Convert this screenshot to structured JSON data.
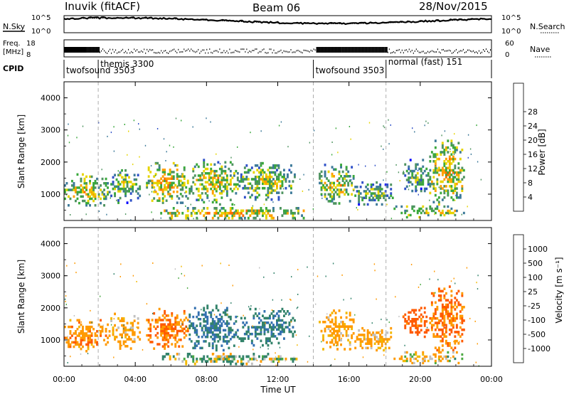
{
  "header": {
    "station": "Inuvik (fitACF)",
    "beam": "Beam 06",
    "date": "28/Nov/2015"
  },
  "labels": {
    "nsky": "N.Sky",
    "nsearch": "N.Search",
    "freq_line1": "Freq.",
    "freq_line2": "[MHz]",
    "nave": "Nave",
    "cpid": "CPID",
    "nsky_ticks": [
      "10^5",
      "10^0"
    ],
    "freq_ticks": [
      "18",
      "8"
    ],
    "nave_ticks": [
      "60",
      "0"
    ]
  },
  "cpid_segments": [
    {
      "start_hour": 0.0,
      "label": "twofsound 3503"
    },
    {
      "start_hour": 1.92,
      "label": "themis 3300"
    },
    {
      "start_hour": 14.0,
      "label": "twofsound 3503"
    },
    {
      "start_hour": 18.08,
      "label": "normal (fast) 151"
    }
  ],
  "axes": {
    "xlabel": "Time UT",
    "ylabel": "Slant Range [km]",
    "x_ticks": [
      "00:00",
      "04:00",
      "08:00",
      "12:00",
      "16:00",
      "20:00",
      "00:00"
    ],
    "y_ticks": [
      "1000",
      "2000",
      "3000",
      "4000"
    ]
  },
  "colorbars": {
    "power": {
      "label": "Power [dB]",
      "ticks": [
        "4",
        "8",
        "12",
        "16",
        "20",
        "24",
        "28"
      ],
      "colors": [
        "#0000ff",
        "#2e50c8",
        "#3d7a99",
        "#4f9460",
        "#3aa83c",
        "#e6d400",
        "#ff9f00",
        "#ff6a00",
        "#ff3000"
      ]
    },
    "velocity": {
      "label": "Velocity [m s⁻¹]",
      "ticks": [
        "1000",
        "500",
        "100",
        "25",
        "-25",
        "-100",
        "-500",
        "-1000"
      ],
      "colors": [
        "#1f3fb4",
        "#3471b0",
        "#33836b",
        "#4caa44",
        "#c0c0c0",
        "#f2b800",
        "#ff9a00",
        "#ff5a00",
        "#ff1000"
      ]
    }
  },
  "chart_data": {
    "type": "heatmap",
    "title": "Inuvik (fitACF)",
    "xlabel": "Time UT",
    "ylabel": "Slant Range [km]",
    "xlim_hours": [
      0,
      24
    ],
    "ylim_km": [
      180,
      4500
    ],
    "series": [
      {
        "name": "Power [dB]",
        "range": [
          0,
          30
        ]
      },
      {
        "name": "Velocity [m s⁻¹]",
        "range": [
          -1000,
          1000
        ]
      }
    ],
    "echo_regions": [
      {
        "t0": 0.0,
        "t1": 2.6,
        "r0": 620,
        "r1": 1650,
        "power": 20,
        "velocity": -200
      },
      {
        "t0": 2.6,
        "t1": 4.3,
        "r0": 700,
        "r1": 1850,
        "power": 17,
        "velocity": -150
      },
      {
        "t0": 4.6,
        "t1": 7.0,
        "r0": 700,
        "r1": 2000,
        "power": 22,
        "velocity": -300
      },
      {
        "t0": 7.0,
        "t1": 9.8,
        "r0": 650,
        "r1": 2100,
        "power": 20,
        "velocity": 300
      },
      {
        "t0": 9.8,
        "t1": 13.0,
        "r0": 800,
        "r1": 2000,
        "power": 18,
        "velocity": 250
      },
      {
        "t0": 14.3,
        "t1": 16.3,
        "r0": 680,
        "r1": 1950,
        "power": 20,
        "velocity": -150
      },
      {
        "t0": 16.3,
        "t1": 18.5,
        "r0": 650,
        "r1": 1400,
        "power": 16,
        "velocity": -120
      },
      {
        "t0": 19.0,
        "t1": 20.5,
        "r0": 1000,
        "r1": 2100,
        "power": 15,
        "velocity": -400
      },
      {
        "t0": 20.5,
        "t1": 22.5,
        "r0": 650,
        "r1": 2700,
        "power": 22,
        "velocity": -300
      },
      {
        "t0": 5.2,
        "t1": 13.5,
        "r0": 220,
        "r1": 600,
        "power": 23,
        "velocity": 50
      },
      {
        "t0": 18.5,
        "t1": 22.5,
        "r0": 250,
        "r1": 650,
        "power": 20,
        "velocity": -80
      }
    ]
  }
}
